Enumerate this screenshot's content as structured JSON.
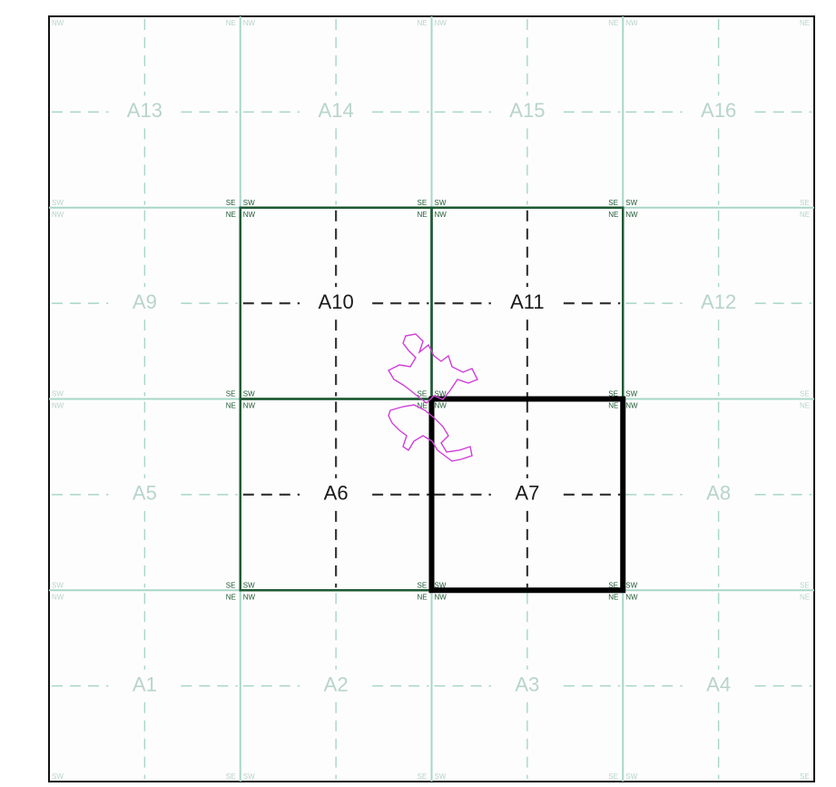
{
  "grid": {
    "rows": [
      [
        "A13",
        "A14",
        "A15",
        "A16"
      ],
      [
        "A9",
        "A10",
        "A11",
        "A12"
      ],
      [
        "A5",
        "A6",
        "A7",
        "A8"
      ],
      [
        "A1",
        "A2",
        "A3",
        "A4"
      ]
    ],
    "highlighted_cells": [
      "A6",
      "A7",
      "A10",
      "A11"
    ],
    "selected_cell": "A7",
    "corner_labels": {
      "nw": "NW",
      "ne": "NE",
      "sw": "SW",
      "se": "SE"
    }
  },
  "colors": {
    "grid_line": "#a8d6c8",
    "faded_label": "#b8d4cc",
    "highlight_border": "#1f5a34",
    "highlight_label": "#1a1a1a",
    "dash": "#3a3a3a",
    "selected_border": "#000000",
    "track": "#d040d8",
    "frame": "#111111"
  },
  "track_name": "magenta-track"
}
